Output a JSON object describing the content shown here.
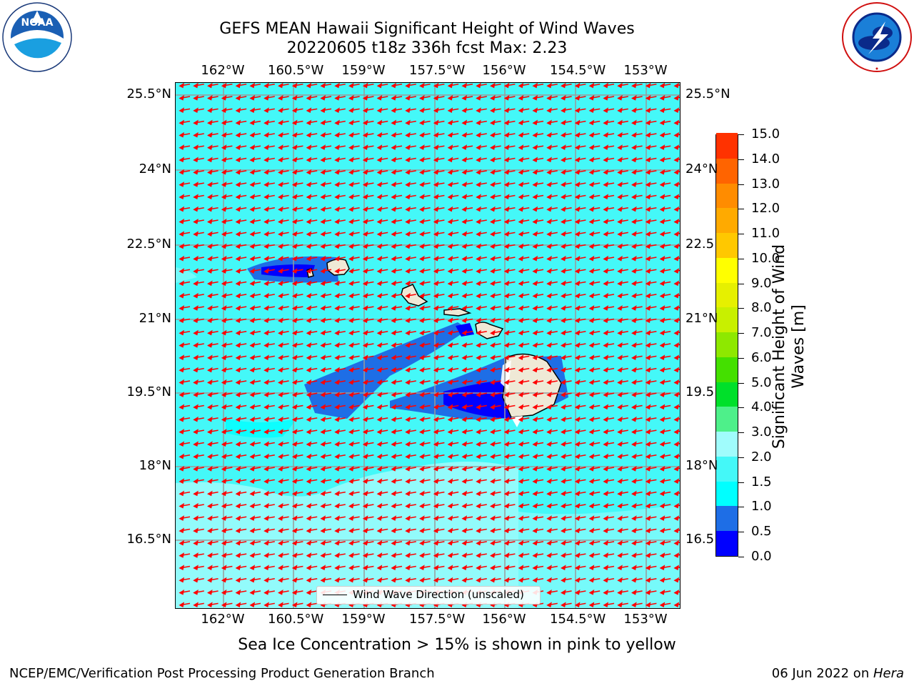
{
  "header": {
    "title_line1": "GEFS MEAN Hawaii Significant Height of Wind Waves",
    "title_line2": "20220605 t18z 336h fcst   Max: 2.23"
  },
  "logos": {
    "left": {
      "name": "NOAA",
      "ring_text": "NATIONAL OCEANIC AND ATMOSPHERIC ADMINISTRATION · U.S. DEPARTMENT OF COMMERCE"
    },
    "right": {
      "name": "National Weather Service",
      "ring_text": "NATIONAL WEATHER SERVICE"
    }
  },
  "map": {
    "lon_ticks": [
      "162°W",
      "160.5°W",
      "159°W",
      "157.5°W",
      "156°W",
      "154.5°W",
      "153°W"
    ],
    "lat_ticks_left": [
      "25.5°N",
      "24°N",
      "22.5°N",
      "21°N",
      "19.5°N",
      "18°N",
      "16.5°N"
    ],
    "lat_ticks_right": [
      "25.5°N",
      "24°N",
      "22.5",
      "21°N",
      "19.5",
      "18°N",
      "16.5"
    ],
    "ocean_color": "#44f8f8",
    "arrow_color": "#ff0000",
    "legend_label": "Wind Wave Direction (unscaled)"
  },
  "colorbar": {
    "label_line1": "Significant Height of Wind",
    "label_line2": "Waves [m]",
    "ticks": [
      "15.0",
      "14.0",
      "13.0",
      "12.0",
      "11.0",
      "10.0",
      "9.0",
      "8.0",
      "7.0",
      "6.0",
      "5.0",
      "4.0",
      "3.0",
      "2.0",
      "1.5",
      "1.0",
      "0.5",
      "0.0"
    ],
    "colors_bottom_to_top": [
      "#0000ff",
      "#1e6ee6",
      "#00ffff",
      "#44f8f8",
      "#a0fcfc",
      "#4ef08a",
      "#00e02a",
      "#44e000",
      "#8ee800",
      "#c8f000",
      "#e6f000",
      "#ffff00",
      "#ffc800",
      "#ffaa00",
      "#ff8c00",
      "#ff6400",
      "#ff3200"
    ]
  },
  "subtitle": "Sea Ice Concentration > 15% is shown in pink to yellow",
  "footer": {
    "left": "NCEP/EMC/Verification Post Processing Product Generation Branch",
    "right_prefix": "06 Jun 2022 on ",
    "right_host": "Hera"
  }
}
